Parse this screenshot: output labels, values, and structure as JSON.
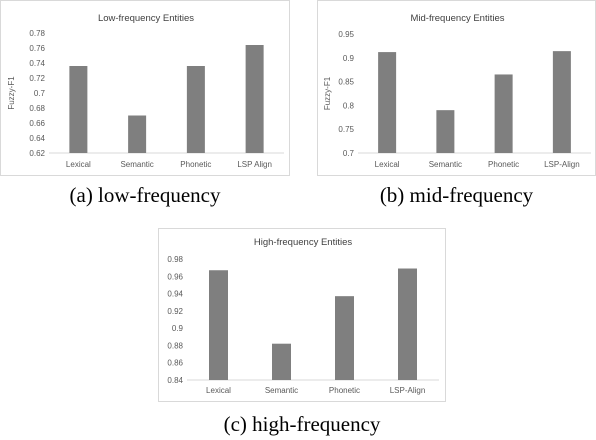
{
  "chart_data": [
    {
      "type": "bar",
      "title": "Low-frequency Entities",
      "ylabel": "Fuzzy-F1",
      "categories": [
        "Lexical",
        "Semantic",
        "Phonetic",
        "LSP Align"
      ],
      "values": [
        0.736,
        0.67,
        0.736,
        0.764
      ],
      "ylim": [
        0.62,
        0.78
      ],
      "yticks": [
        "0.62",
        "0.64",
        "0.66",
        "0.68",
        "0.7",
        "0.72",
        "0.74",
        "0.76",
        "0.78"
      ],
      "grid": false,
      "bar_color": "#7f7f7f",
      "caption": "(a) low-frequency"
    },
    {
      "type": "bar",
      "title": "Mid-frequency Entities",
      "ylabel": "Fuzzy-F1",
      "categories": [
        "Lexical",
        "Semantic",
        "Phonetic",
        "LSP-Align"
      ],
      "values": [
        0.912,
        0.79,
        0.865,
        0.914
      ],
      "ylim": [
        0.7,
        0.95
      ],
      "yticks": [
        "0.7",
        "0.75",
        "0.8",
        "0.85",
        "0.9",
        "0.95"
      ],
      "grid": false,
      "bar_color": "#7f7f7f",
      "caption": "(b) mid-frequency"
    },
    {
      "type": "bar",
      "title": "High-frequency Entities",
      "ylabel": "",
      "categories": [
        "Lexical",
        "Semantic",
        "Phonetic",
        "LSP-Align"
      ],
      "values": [
        0.967,
        0.882,
        0.937,
        0.969
      ],
      "ylim": [
        0.84,
        0.98
      ],
      "yticks": [
        "0.84",
        "0.86",
        "0.88",
        "0.9",
        "0.92",
        "0.94",
        "0.96",
        "0.98"
      ],
      "grid": false,
      "bar_color": "#7f7f7f",
      "caption": "(c) high-frequency"
    }
  ]
}
